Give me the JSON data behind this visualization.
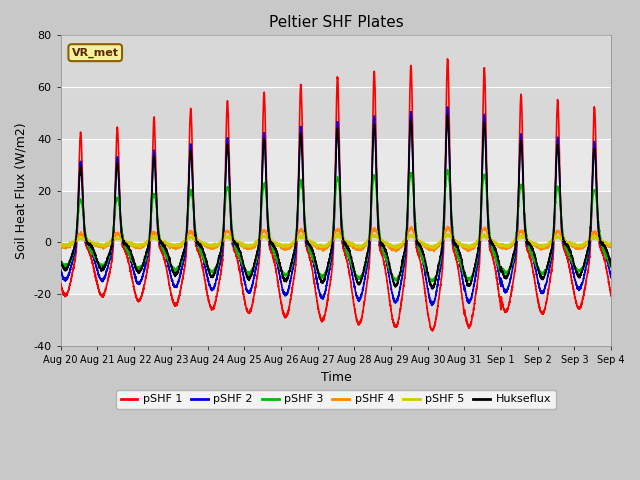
{
  "title": "Peltier SHF Plates",
  "xlabel": "Time",
  "ylabel": "Soil Heat Flux (W/m2)",
  "ylim": [
    -40,
    80
  ],
  "yticks": [
    -40,
    -20,
    0,
    20,
    40,
    60,
    80
  ],
  "fig_bg": "#c8c8c8",
  "plot_bg": "#e8e8e8",
  "band1_color": "#d8d8d8",
  "annotation_text": "VR_met",
  "annotation_bg": "#f5f0a0",
  "annotation_border": "#8b6000",
  "legend_entries": [
    "pSHF 1",
    "pSHF 2",
    "pSHF 3",
    "pSHF 4",
    "pSHF 5",
    "Hukseflux"
  ],
  "line_colors": [
    "#ff0000",
    "#0000dd",
    "#00bb00",
    "#ff8800",
    "#cccc00",
    "#000000"
  ],
  "line_widths": [
    1.2,
    1.2,
    1.2,
    1.2,
    1.2,
    1.2
  ],
  "xtick_labels": [
    "Aug 20",
    "Aug 21",
    "Aug 22",
    "Aug 23",
    "Aug 24",
    "Aug 25",
    "Aug 26",
    "Aug 27",
    "Aug 28",
    "Aug 29",
    "Aug 30",
    "Aug 31",
    "Sep 1",
    "Sep 2",
    "Sep 3",
    "Sep 4"
  ],
  "n_days": 15,
  "ppd": 288
}
